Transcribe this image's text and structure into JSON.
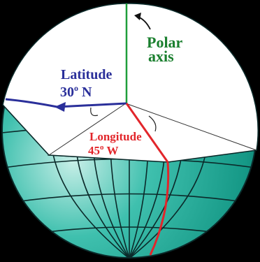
{
  "labels": {
    "polar_line1": "Polar",
    "polar_line2": "axis",
    "latitude_line1": "Latitude",
    "latitude_deg": "30",
    "latitude_unit": "o",
    "latitude_dir": " N",
    "longitude_line1": "Longitude",
    "longitude_deg": "45",
    "longitude_unit": "o",
    "longitude_dir": " W"
  },
  "colors": {
    "background": "#000000",
    "globe_light": "#c8efe8",
    "globe_mid": "#2fb8a6",
    "globe_dark": "#0d6f63",
    "grid": "#0b2a2a",
    "cutout": "#ffffff",
    "polar_axis": "#1f9e3a",
    "polar_text": "#1a7f2e",
    "latitude": "#2a2f9a",
    "longitude": "#e2262b"
  },
  "icons": [
    "curved-arrow-icon",
    "arrowhead-icon"
  ]
}
